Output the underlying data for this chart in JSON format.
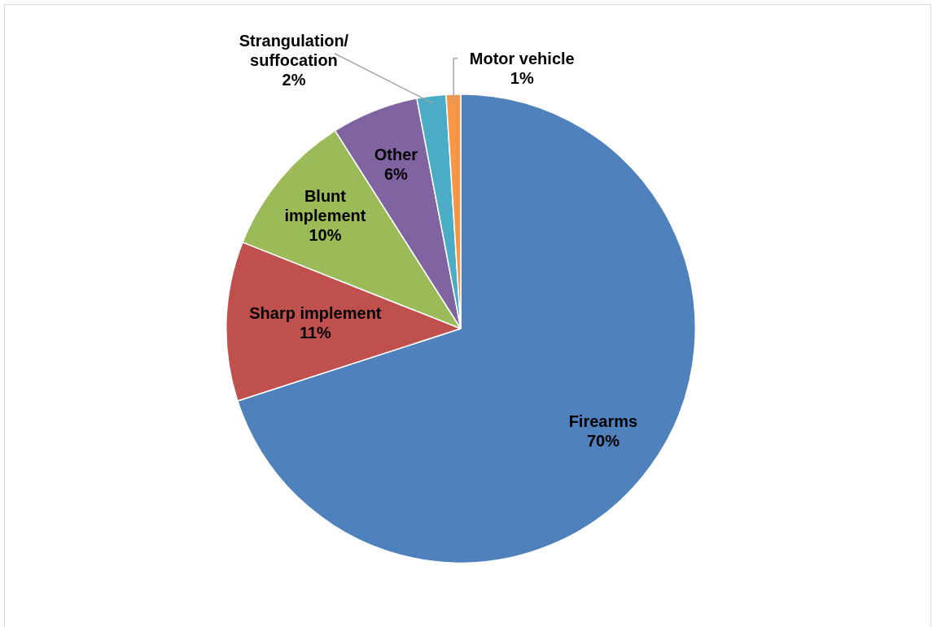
{
  "chart_data": {
    "type": "pie",
    "categories": [
      "Firearms",
      "Sharp implement",
      "Blunt\nimplement",
      "Other",
      "Strangulation/\nsuffocation",
      "Motor vehicle"
    ],
    "values": [
      70,
      11,
      10,
      6,
      2,
      1
    ],
    "colors": [
      "#4f81bd",
      "#c0504d",
      "#9bbb59",
      "#8064a2",
      "#4bacc6",
      "#f79646"
    ],
    "value_labels": [
      "70%",
      "11%",
      "10%",
      "6%",
      "2%",
      "1%"
    ],
    "legend": false
  }
}
